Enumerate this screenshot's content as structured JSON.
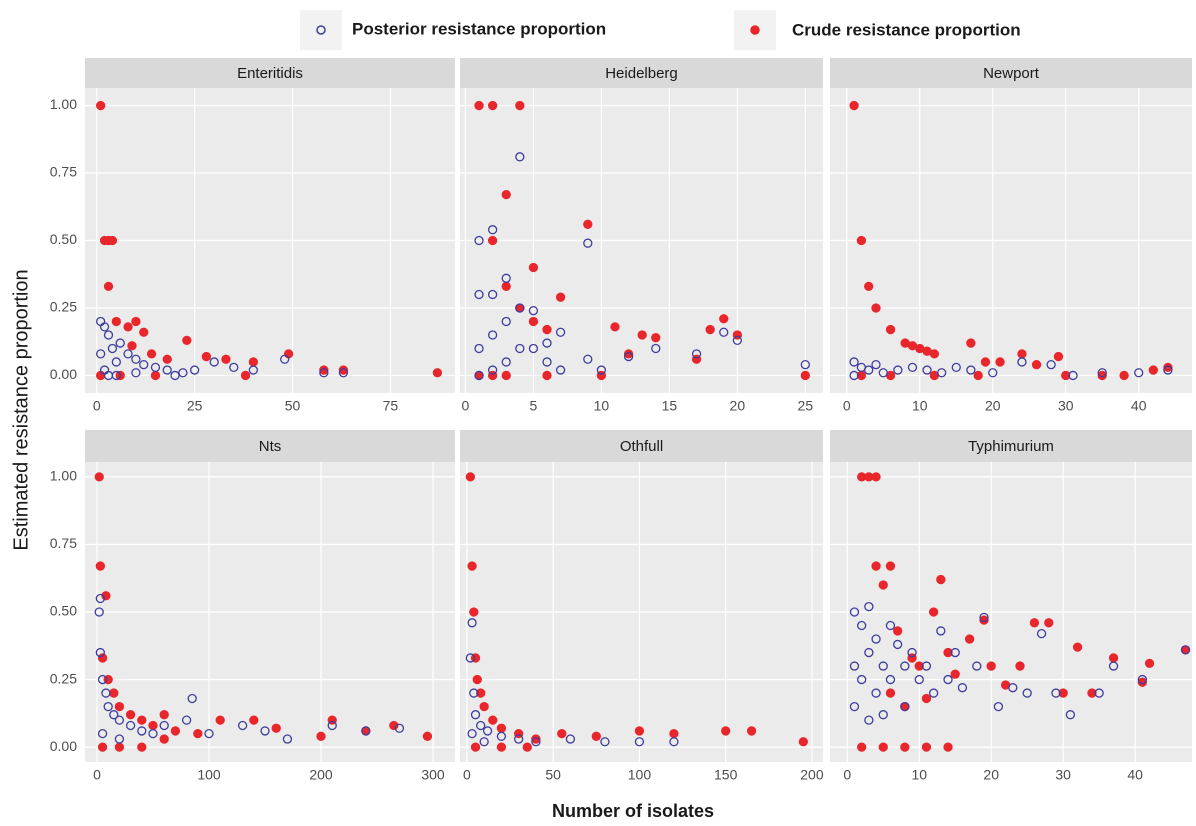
{
  "chart_data": [
    {
      "type": "scatter",
      "title": "Enteritidis",
      "xlabel": "Number of isolates",
      "ylabel": "Estimated resistance proportion",
      "xlim": [
        -3,
        91.5
      ],
      "xticks": [
        0,
        25,
        50,
        75
      ],
      "ylim": [
        -0.065,
        1.065
      ],
      "yticks": [
        {
          "value": 0,
          "label": "0.00"
        },
        {
          "value": 0.25,
          "label": "0.25"
        },
        {
          "value": 0.5,
          "label": "0.50"
        },
        {
          "value": 0.75,
          "label": "0.75"
        },
        {
          "value": 1,
          "label": "1.00"
        }
      ],
      "grid": true,
      "series": [
        {
          "name": "Posterior resistance proportion",
          "color": "#3d3d9e",
          "hollow": true,
          "x": [
            1,
            2,
            3,
            4,
            5,
            2,
            3,
            6,
            8,
            10,
            12,
            15,
            18,
            22,
            25,
            30,
            35,
            40,
            48,
            58,
            63,
            1,
            5,
            10,
            20
          ],
          "values": [
            0.2,
            0.18,
            0.15,
            0.1,
            0.05,
            0.02,
            0,
            0.12,
            0.08,
            0.06,
            0.04,
            0.03,
            0.02,
            0.01,
            0.02,
            0.05,
            0.03,
            0.02,
            0.06,
            0.01,
            0.01,
            0.08,
            0,
            0.01,
            0
          ]
        },
        {
          "name": "Crude resistance proportion",
          "color": "#e8262b",
          "hollow": false,
          "x": [
            1,
            2,
            3,
            4,
            3,
            5,
            8,
            10,
            12,
            9,
            14,
            18,
            23,
            28,
            33,
            40,
            49,
            58,
            63,
            87,
            1,
            6,
            15,
            38
          ],
          "values": [
            1,
            0.5,
            0.5,
            0.5,
            0.33,
            0.2,
            0.18,
            0.2,
            0.16,
            0.11,
            0.08,
            0.06,
            0.13,
            0.07,
            0.06,
            0.05,
            0.08,
            0.02,
            0.02,
            0.01,
            0,
            0,
            0,
            0
          ]
        }
      ]
    },
    {
      "type": "scatter",
      "title": "Heidelberg",
      "xlim": [
        -0.4,
        26.3
      ],
      "xticks": [
        0,
        5,
        10,
        15,
        20,
        25
      ],
      "ylim": [
        -0.065,
        1.065
      ],
      "yticks": [
        {
          "value": 0,
          "label": "0.00"
        },
        {
          "value": 0.25,
          "label": "0.25"
        },
        {
          "value": 0.5,
          "label": "0.50"
        },
        {
          "value": 0.75,
          "label": "0.75"
        },
        {
          "value": 1,
          "label": "1.00"
        }
      ],
      "grid": true,
      "series": [
        {
          "color": "#3d3d9e",
          "hollow": true,
          "x": [
            1,
            1,
            1,
            1,
            2,
            2,
            2,
            2,
            3,
            3,
            3,
            4,
            4,
            4,
            5,
            5,
            6,
            6,
            7,
            7,
            9,
            9,
            10,
            12,
            14,
            17,
            19,
            20,
            25
          ],
          "values": [
            0.5,
            0.3,
            0.1,
            0,
            0.54,
            0.3,
            0.15,
            0.02,
            0.36,
            0.2,
            0.05,
            0.81,
            0.25,
            0.1,
            0.24,
            0.1,
            0.12,
            0.05,
            0.16,
            0.02,
            0.49,
            0.06,
            0.02,
            0.07,
            0.1,
            0.08,
            0.16,
            0.13,
            0.04
          ]
        },
        {
          "color": "#e8262b",
          "hollow": false,
          "x": [
            1,
            2,
            4,
            3,
            2,
            5,
            3,
            7,
            4,
            5,
            6,
            9,
            11,
            12,
            13,
            14,
            17,
            18,
            19,
            20,
            1,
            2,
            3,
            6,
            10,
            25
          ],
          "values": [
            1,
            1,
            1,
            0.67,
            0.5,
            0.4,
            0.33,
            0.29,
            0.25,
            0.2,
            0.17,
            0.56,
            0.18,
            0.08,
            0.15,
            0.14,
            0.06,
            0.17,
            0.21,
            0.15,
            0,
            0,
            0,
            0,
            0,
            0
          ]
        }
      ]
    },
    {
      "type": "scatter",
      "title": "Newport",
      "xlim": [
        -2.3,
        47.3
      ],
      "xticks": [
        0,
        10,
        20,
        30,
        40
      ],
      "ylim": [
        -0.065,
        1.065
      ],
      "yticks": [
        {
          "value": 0,
          "label": "0.00"
        },
        {
          "value": 0.25,
          "label": "0.25"
        },
        {
          "value": 0.5,
          "label": "0.50"
        },
        {
          "value": 0.75,
          "label": "0.75"
        },
        {
          "value": 1,
          "label": "1.00"
        }
      ],
      "grid": true,
      "series": [
        {
          "color": "#3d3d9e",
          "hollow": true,
          "x": [
            1,
            2,
            3,
            4,
            5,
            7,
            9,
            11,
            13,
            15,
            17,
            20,
            24,
            28,
            31,
            35,
            40,
            44,
            1
          ],
          "values": [
            0.05,
            0.03,
            0.02,
            0.04,
            0.01,
            0.02,
            0.03,
            0.02,
            0.01,
            0.03,
            0.02,
            0.01,
            0.05,
            0.04,
            0,
            0.01,
            0.01,
            0.02,
            0
          ]
        },
        {
          "color": "#e8262b",
          "hollow": false,
          "x": [
            1,
            2,
            3,
            4,
            6,
            8,
            9,
            10,
            11,
            12,
            17,
            19,
            21,
            24,
            26,
            29,
            35,
            42,
            44,
            2,
            6,
            12,
            18,
            30,
            38
          ],
          "values": [
            1,
            0.5,
            0.33,
            0.25,
            0.17,
            0.12,
            0.11,
            0.1,
            0.09,
            0.08,
            0.12,
            0.05,
            0.05,
            0.08,
            0.04,
            0.07,
            0,
            0.02,
            0.03,
            0,
            0,
            0,
            0,
            0,
            0
          ]
        }
      ]
    },
    {
      "type": "scatter",
      "title": "Nts",
      "xlim": [
        -10.7,
        319.6
      ],
      "xticks": [
        0,
        100,
        200,
        300
      ],
      "ylim": [
        -0.055,
        1.055
      ],
      "yticks": [
        {
          "value": 0,
          "label": "0.00"
        },
        {
          "value": 0.25,
          "label": "0.25"
        },
        {
          "value": 0.5,
          "label": "0.50"
        },
        {
          "value": 0.75,
          "label": "0.75"
        },
        {
          "value": 1,
          "label": "1.00"
        }
      ],
      "grid": true,
      "series": [
        {
          "color": "#3d3d9e",
          "hollow": true,
          "x": [
            2,
            3,
            3,
            5,
            8,
            10,
            15,
            20,
            30,
            40,
            50,
            60,
            80,
            85,
            100,
            130,
            150,
            170,
            210,
            240,
            270,
            5,
            20
          ],
          "values": [
            0.5,
            0.55,
            0.35,
            0.25,
            0.2,
            0.15,
            0.12,
            0.1,
            0.08,
            0.06,
            0.05,
            0.08,
            0.1,
            0.18,
            0.05,
            0.08,
            0.06,
            0.03,
            0.08,
            0.06,
            0.07,
            0.05,
            0.03
          ]
        },
        {
          "color": "#e8262b",
          "hollow": false,
          "x": [
            2,
            3,
            8,
            5,
            10,
            15,
            20,
            30,
            40,
            50,
            60,
            70,
            90,
            110,
            140,
            160,
            200,
            210,
            240,
            265,
            295,
            5,
            20,
            40,
            60
          ],
          "values": [
            1,
            0.67,
            0.56,
            0.33,
            0.25,
            0.2,
            0.15,
            0.12,
            0.1,
            0.08,
            0.12,
            0.06,
            0.05,
            0.1,
            0.1,
            0.07,
            0.04,
            0.1,
            0.06,
            0.08,
            0.04,
            0,
            0,
            0,
            0.03
          ]
        }
      ]
    },
    {
      "type": "scatter",
      "title": "Othfull",
      "xlim": [
        -4,
        206.4
      ],
      "xticks": [
        0,
        50,
        100,
        150,
        200
      ],
      "ylim": [
        -0.055,
        1.055
      ],
      "yticks": [
        {
          "value": 0,
          "label": "0.00"
        },
        {
          "value": 0.25,
          "label": "0.25"
        },
        {
          "value": 0.5,
          "label": "0.50"
        },
        {
          "value": 0.75,
          "label": "0.75"
        },
        {
          "value": 1,
          "label": "1.00"
        }
      ],
      "grid": true,
      "series": [
        {
          "color": "#3d3d9e",
          "hollow": true,
          "x": [
            3,
            2,
            4,
            5,
            8,
            12,
            20,
            30,
            40,
            60,
            80,
            100,
            120,
            3,
            10
          ],
          "values": [
            0.46,
            0.33,
            0.2,
            0.12,
            0.08,
            0.06,
            0.04,
            0.03,
            0.02,
            0.03,
            0.02,
            0.02,
            0.02,
            0.05,
            0.02
          ]
        },
        {
          "color": "#e8262b",
          "hollow": false,
          "x": [
            2,
            3,
            4,
            5,
            6,
            8,
            10,
            15,
            20,
            30,
            40,
            55,
            75,
            100,
            120,
            150,
            165,
            195,
            5,
            20,
            35
          ],
          "values": [
            1,
            0.67,
            0.5,
            0.33,
            0.25,
            0.2,
            0.15,
            0.1,
            0.07,
            0.05,
            0.03,
            0.05,
            0.04,
            0.06,
            0.05,
            0.06,
            0.06,
            0.02,
            0,
            0,
            0
          ]
        }
      ]
    },
    {
      "type": "scatter",
      "title": "Typhimurium",
      "xlim": [
        -2.4,
        47.9
      ],
      "xticks": [
        0,
        10,
        20,
        30,
        40
      ],
      "ylim": [
        -0.055,
        1.055
      ],
      "yticks": [
        {
          "value": 0,
          "label": "0.00"
        },
        {
          "value": 0.25,
          "label": "0.25"
        },
        {
          "value": 0.5,
          "label": "0.50"
        },
        {
          "value": 0.75,
          "label": "0.75"
        },
        {
          "value": 1,
          "label": "1.00"
        }
      ],
      "grid": true,
      "series": [
        {
          "color": "#3d3d9e",
          "hollow": true,
          "x": [
            1,
            1,
            1,
            2,
            2,
            3,
            3,
            3,
            4,
            4,
            5,
            5,
            6,
            6,
            7,
            8,
            8,
            9,
            10,
            11,
            12,
            13,
            14,
            15,
            16,
            18,
            19,
            21,
            23,
            25,
            27,
            29,
            31,
            35,
            37,
            41,
            47
          ],
          "values": [
            0.5,
            0.3,
            0.15,
            0.45,
            0.25,
            0.52,
            0.35,
            0.1,
            0.4,
            0.2,
            0.3,
            0.12,
            0.45,
            0.25,
            0.38,
            0.3,
            0.15,
            0.35,
            0.25,
            0.3,
            0.2,
            0.43,
            0.25,
            0.35,
            0.22,
            0.3,
            0.48,
            0.15,
            0.22,
            0.2,
            0.42,
            0.2,
            0.12,
            0.2,
            0.3,
            0.25,
            0.36
          ]
        },
        {
          "color": "#e8262b",
          "hollow": false,
          "x": [
            2,
            3,
            4,
            4,
            6,
            5,
            6,
            7,
            8,
            9,
            10,
            11,
            12,
            13,
            14,
            15,
            17,
            19,
            20,
            22,
            24,
            26,
            28,
            30,
            32,
            34,
            37,
            41,
            42,
            47,
            2,
            5,
            8,
            11,
            14
          ],
          "values": [
            1,
            1,
            1,
            0.67,
            0.67,
            0.6,
            0.2,
            0.43,
            0.15,
            0.33,
            0.3,
            0.18,
            0.5,
            0.62,
            0.35,
            0.27,
            0.4,
            0.47,
            0.3,
            0.23,
            0.3,
            0.46,
            0.46,
            0.2,
            0.37,
            0.2,
            0.33,
            0.24,
            0.31,
            0.36,
            0,
            0,
            0,
            0,
            0
          ]
        }
      ]
    }
  ]
}
